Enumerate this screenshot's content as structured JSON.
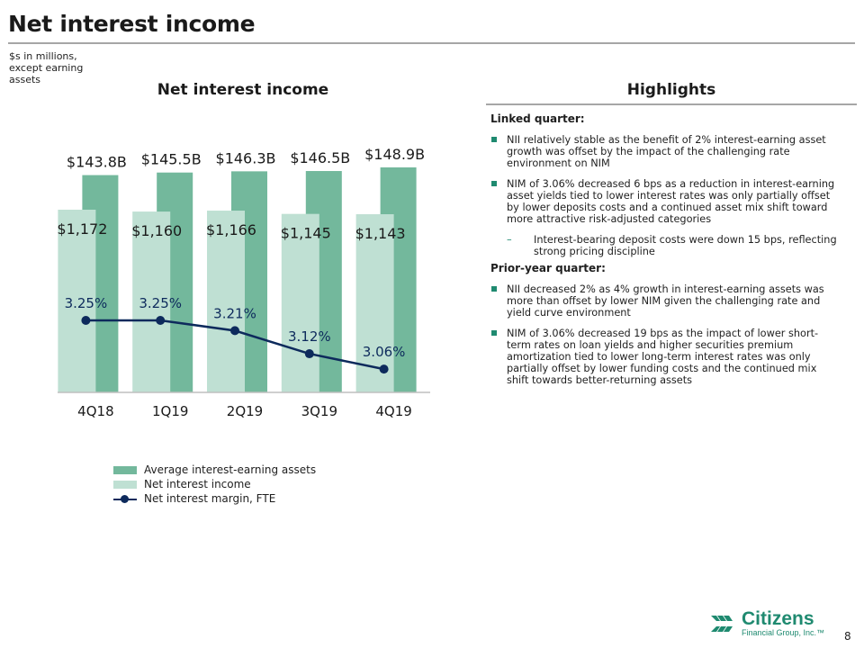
{
  "header": {
    "title": "Net interest income",
    "units_note": "$s in millions, except earning assets"
  },
  "chart_data": {
    "type": "bar",
    "title": "Net interest income",
    "categories": [
      "4Q18",
      "1Q19",
      "2Q19",
      "3Q19",
      "4Q19"
    ],
    "series": [
      {
        "name": "Average interest-earning assets",
        "values": [
          143.8,
          145.5,
          146.3,
          146.5,
          148.9
        ],
        "labels": [
          "$143.8B",
          "$145.5B",
          "$146.3B",
          "$146.5B",
          "$148.9B"
        ]
      },
      {
        "name": "Net interest income",
        "values": [
          1172,
          1160,
          1166,
          1145,
          1143
        ],
        "labels": [
          "$1,172",
          "$1,160",
          "$1,166",
          "$1,145",
          "$1,143"
        ]
      },
      {
        "name": "Net interest margin, FTE",
        "type": "line",
        "values": [
          3.25,
          3.25,
          3.21,
          3.12,
          3.06
        ],
        "labels": [
          "3.25%",
          "3.25%",
          "3.21%",
          "3.12%",
          "3.06%"
        ]
      }
    ],
    "legend_position": "bottom",
    "grid": false,
    "colors": {
      "assets": "#73b89c",
      "nii": "#bfe0d3",
      "nim": "#0d2a5c"
    }
  },
  "highlights": {
    "title": "Highlights",
    "linked_quarter": {
      "heading": "Linked quarter:",
      "bullets": [
        "NII relatively stable as the benefit of 2% interest-earning asset growth was offset by the impact of the challenging rate environment on NIM",
        "NIM of 3.06% decreased 6 bps as a reduction in interest-earning asset yields tied to lower interest rates was only partially offset by lower deposits costs and a continued asset mix shift toward more attractive risk-adjusted categories"
      ],
      "sub_bullets": [
        "Interest-bearing deposit costs were down 15 bps, reflecting strong pricing discipline"
      ]
    },
    "prior_year_quarter": {
      "heading": "Prior-year quarter:",
      "bullets": [
        "NII decreased 2% as 4% growth in interest-earning assets was more than offset by lower NIM given the challenging rate and yield curve environment",
        "NIM of 3.06% decreased 19 bps as the impact of lower short-term rates on loan yields and higher securities premium amortization tied to lower long-term interest rates was only partially offset by lower funding costs and the continued mix shift towards better-returning assets"
      ]
    }
  },
  "legend": {
    "assets": "Average interest-earning assets",
    "nii": "Net interest income",
    "nim": "Net interest margin, FTE"
  },
  "footer": {
    "logo_name": "Citizens",
    "logo_sub": "Financial Group, Inc.™",
    "page_number": "8"
  }
}
